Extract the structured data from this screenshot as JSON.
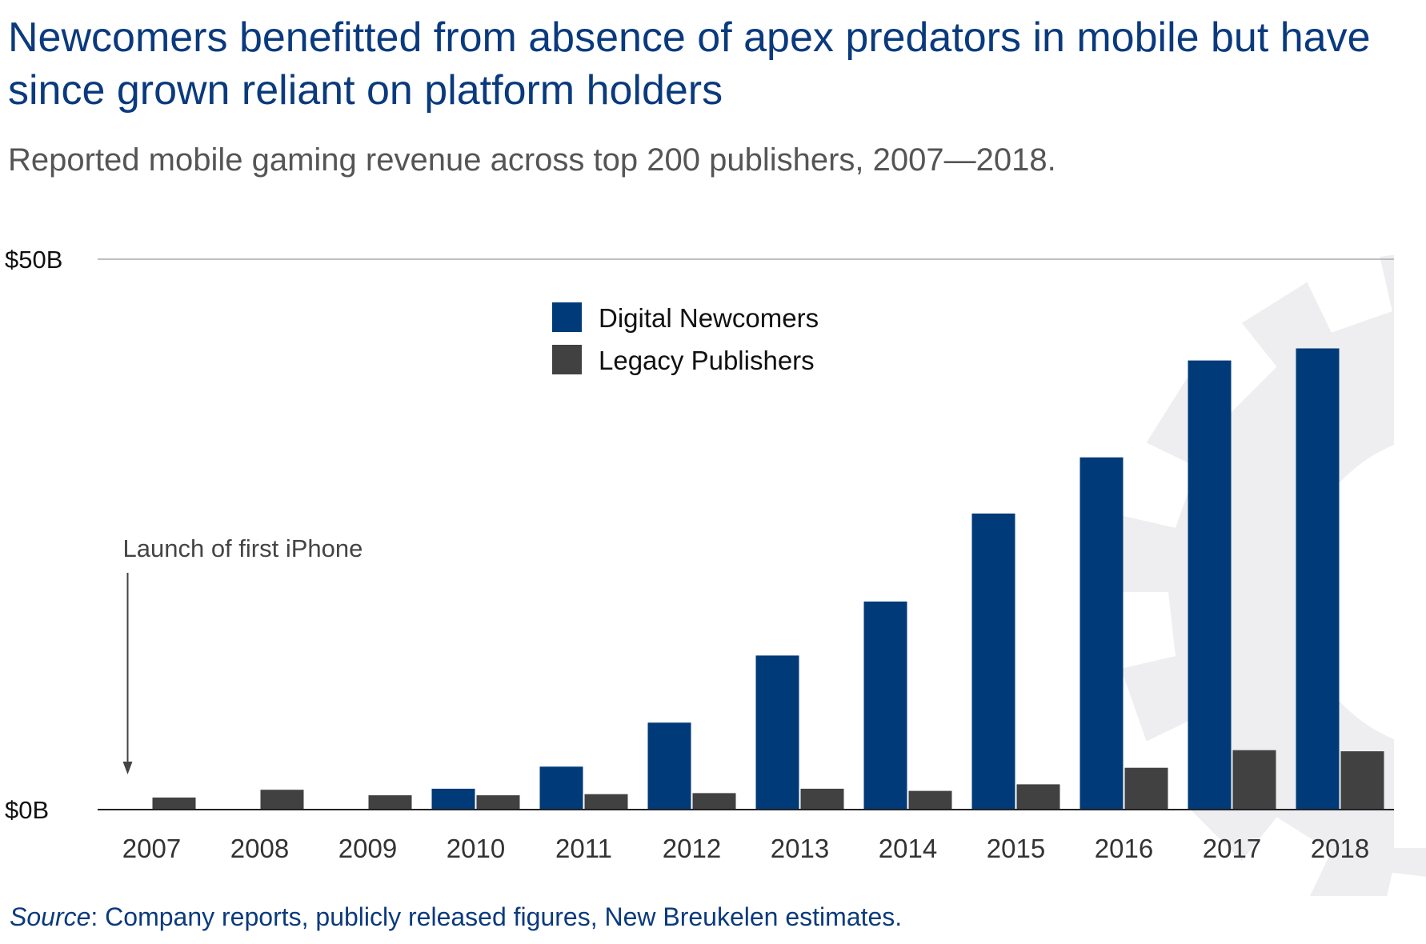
{
  "header": {
    "title": "Newcomers benefitted from absence of apex predators in mobile but have since grown reliant on platform holders",
    "subtitle": "Reported mobile gaming revenue across top 200 publishers, 2007—2018."
  },
  "footer": {
    "source_label": "Source",
    "source_text": ": Company reports, publicly released figures, New Breukelen estimates."
  },
  "colors": {
    "title": "#0a3a7e",
    "newcomers": "#003a78",
    "legacy": "#414141",
    "watermark": "#eeeef0",
    "axis": "#222222",
    "gridline": "#aaaaaa"
  },
  "chart_data": {
    "type": "bar",
    "title": "Newcomers benefitted from absence of apex predators in mobile but have since grown reliant on platform holders",
    "subtitle": "Reported mobile gaming revenue across top 200 publishers, 2007—2018.",
    "xlabel": "",
    "ylabel": "",
    "categories": [
      "2007",
      "2008",
      "2009",
      "2010",
      "2011",
      "2012",
      "2013",
      "2014",
      "2015",
      "2016",
      "2017",
      "2018"
    ],
    "series": [
      {
        "name": "Digital Newcomers",
        "color": "#003a78",
        "values": [
          0,
          0,
          0,
          1.9,
          3.9,
          7.9,
          14.0,
          18.9,
          26.9,
          32.0,
          40.8,
          41.9
        ]
      },
      {
        "name": "Legacy Publishers",
        "color": "#414141",
        "values": [
          1.1,
          1.8,
          1.3,
          1.3,
          1.4,
          1.5,
          1.9,
          1.7,
          2.3,
          3.8,
          5.4,
          5.3
        ]
      }
    ],
    "ylim": [
      0,
      50
    ],
    "y_ticks": [
      {
        "value": 0,
        "label": "$0B"
      },
      {
        "value": 50,
        "label": "$50B"
      }
    ],
    "grid": false,
    "legend": {
      "position": "top-center"
    },
    "annotation": {
      "text": "Launch of first iPhone",
      "category": "2007"
    }
  }
}
